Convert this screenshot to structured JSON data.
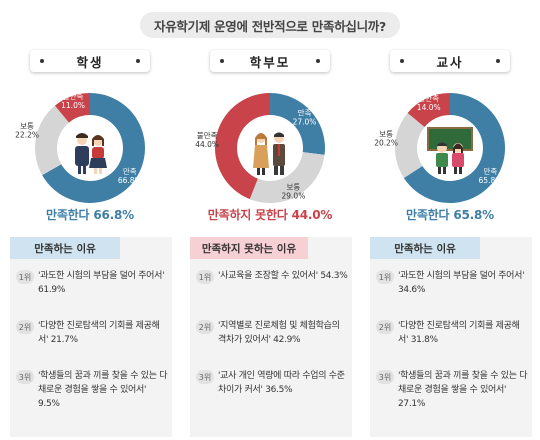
{
  "question": "자유학기제 운영에 전반적으로 만족하십니까?",
  "colors": {
    "satisfied": "#3f7fa6",
    "dissatisfied": "#c8434a",
    "normal": "#d5d5d5",
    "tab_satisfied": "#cfe4f0",
    "tab_dissatisfied": "#f6d0d4"
  },
  "groups": [
    {
      "title": "학생",
      "headline": "만족한다 66.8%",
      "headline_type": "satisfied",
      "reason_title": "만족하는 이유",
      "reasons": [
        {
          "rank": "1위",
          "text": "'과도한 시험의 부담을 덜어 주어서' 61.9%"
        },
        {
          "rank": "2위",
          "text": "'다양한 진로탐색의 기회를 제공해서' 21.7%"
        },
        {
          "rank": "3위",
          "text": "'학생들의 꿈과 끼를 찾을 수 있는 다채로운 경험을 쌓을 수 있어서' 9.5%"
        }
      ]
    },
    {
      "title": "학부모",
      "headline": "만족하지 못한다 44.0%",
      "headline_type": "dissatisfied",
      "reason_title": "만족하지 못하는 이유",
      "reasons": [
        {
          "rank": "1위",
          "text": "'사교육을 조장할 수 있어서' 54.3%"
        },
        {
          "rank": "2위",
          "text": "'지역별로 진로체험 및 체험학습의 격차가 있어서' 42.9%"
        },
        {
          "rank": "3위",
          "text": "'교사 개인 역량에 따라 수업의 수준차이가 커서' 36.5%"
        }
      ]
    },
    {
      "title": "교사",
      "headline": "만족한다 65.8%",
      "headline_type": "satisfied",
      "reason_title": "만족하는 이유",
      "reasons": [
        {
          "rank": "1위",
          "text": "'과도한 시험의 부담을 덜어 주어서' 34.6%"
        },
        {
          "rank": "2위",
          "text": "'다양한 진로탐색의 기회를 제공해서' 31.8%"
        },
        {
          "rank": "3위",
          "text": "'학생들의 꿈과 끼를 찾을 수 있는 다채로운 경험을 쌓을 수 있어서' 27.1%"
        }
      ]
    }
  ],
  "chart_data": [
    {
      "type": "pie",
      "title": "학생",
      "slices": [
        {
          "label": "만족",
          "value": 66.8
        },
        {
          "label": "보통",
          "value": 22.2
        },
        {
          "label": "불만족",
          "value": 11.0
        }
      ]
    },
    {
      "type": "pie",
      "title": "학부모",
      "slices": [
        {
          "label": "만족",
          "value": 27.0
        },
        {
          "label": "보통",
          "value": 29.0
        },
        {
          "label": "불만족",
          "value": 44.0
        }
      ]
    },
    {
      "type": "pie",
      "title": "교사",
      "slices": [
        {
          "label": "만족",
          "value": 65.8
        },
        {
          "label": "보통",
          "value": 20.2
        },
        {
          "label": "불만족",
          "value": 14.0
        }
      ]
    }
  ]
}
